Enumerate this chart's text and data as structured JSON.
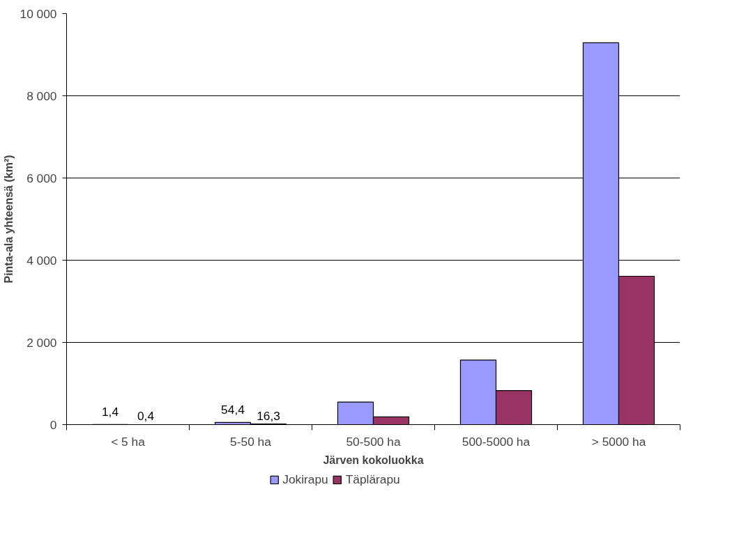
{
  "chart_data": {
    "type": "bar",
    "xlabel": "Järven kokoluokka",
    "ylabel": "Pinta-ala yhteensä (km²)",
    "categories": [
      "< 5 ha",
      "5-50 ha",
      "50-500 ha",
      "500-5000 ha",
      "> 5000 ha"
    ],
    "series": [
      {
        "name": "Jokirapu",
        "color": "#9999ff",
        "values": [
          1.4,
          54.4,
          550,
          1570,
          9290
        ],
        "value_labels": [
          "1,4",
          "54,4",
          null,
          null,
          null
        ]
      },
      {
        "name": "Täplärapu",
        "color": "#993366",
        "values": [
          0.4,
          16.3,
          190,
          830,
          3610
        ],
        "value_labels": [
          "0,4",
          "16,3",
          null,
          null,
          null
        ]
      }
    ],
    "ylim": [
      0,
      10000
    ],
    "yticks": [
      0,
      {
        "value": 2000,
        "label": "2 000"
      },
      {
        "value": 4000,
        "label": "4 000"
      },
      {
        "value": 6000,
        "label": "6 000"
      },
      {
        "value": 8000,
        "label": "8 000"
      },
      {
        "value": 10000,
        "label": "10 000"
      }
    ],
    "grid": "y",
    "legend": "bottom"
  }
}
